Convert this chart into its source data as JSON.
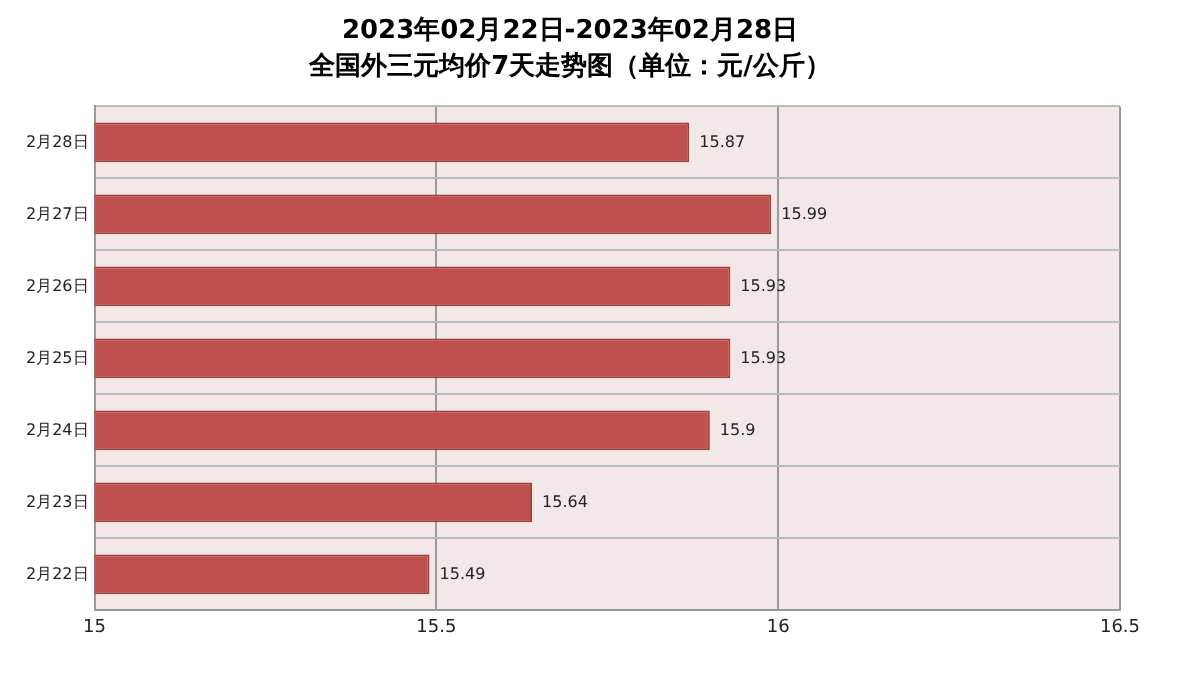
{
  "chart_data": {
    "type": "bar",
    "orientation": "horizontal",
    "title": "2023年02月22日-2023年02月28日",
    "subtitle": "全国外三元均价7天走势图（单位：元/公斤）",
    "categories": [
      "2月28日",
      "2月27日",
      "2月26日",
      "2月25日",
      "2月24日",
      "2月23日",
      "2月22日"
    ],
    "values": [
      15.87,
      15.99,
      15.93,
      15.93,
      15.9,
      15.64,
      15.49
    ],
    "color": "#c0504d",
    "xlim": [
      15,
      16.5
    ],
    "xticks": [
      15,
      15.5,
      16,
      16.5
    ],
    "grid": true,
    "legend": false,
    "data_labels": true
  }
}
